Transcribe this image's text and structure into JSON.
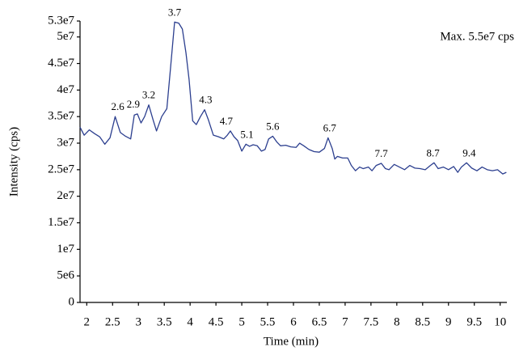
{
  "chart_data": {
    "type": "line",
    "annotation": "Max. 5.5e7 cps",
    "x_label": "Time (min)",
    "y_label": "Intensity (cps)",
    "xlim": [
      1.87,
      10.13
    ],
    "ylim": [
      0,
      53000000.0
    ],
    "xticks": [
      2,
      2.5,
      3,
      3.5,
      4,
      4.5,
      5,
      5.5,
      6,
      6.5,
      7,
      7.5,
      8,
      8.5,
      9,
      9.5,
      10
    ],
    "yticks": [
      0,
      {
        "value": 5000000.0,
        "label": "5e6"
      },
      {
        "value": 10000000.0,
        "label": "1e7"
      },
      {
        "value": 15000000.0,
        "label": "1.5e7"
      },
      {
        "value": 20000000.0,
        "label": "2e7"
      },
      {
        "value": 25000000.0,
        "label": "2.5e7"
      },
      {
        "value": 30000000.0,
        "label": "3e7"
      },
      {
        "value": 35000000.0,
        "label": "3.5e7"
      },
      {
        "value": 40000000.0,
        "label": "4e7"
      },
      {
        "value": 45000000.0,
        "label": "4.5e7"
      },
      {
        "value": 50000000.0,
        "label": "5e7"
      },
      {
        "value": 53000000.0,
        "label": "5.3e7"
      }
    ],
    "series": [
      {
        "color": "#2c3f8f",
        "x": [
          1.87,
          1.95,
          2.05,
          2.15,
          2.25,
          2.35,
          2.45,
          2.55,
          2.65,
          2.75,
          2.85,
          2.92,
          2.98,
          3.05,
          3.12,
          3.2,
          3.28,
          3.35,
          3.45,
          3.55,
          3.62,
          3.7,
          3.78,
          3.85,
          3.92,
          3.98,
          4.05,
          4.12,
          4.2,
          4.28,
          4.35,
          4.45,
          4.55,
          4.65,
          4.72,
          4.78,
          4.85,
          4.92,
          5.0,
          5.08,
          5.15,
          5.22,
          5.3,
          5.38,
          5.45,
          5.52,
          5.6,
          5.68,
          5.75,
          5.85,
          5.95,
          6.05,
          6.12,
          6.2,
          6.3,
          6.4,
          6.5,
          6.6,
          6.67,
          6.75,
          6.8,
          6.85,
          6.95,
          7.05,
          7.12,
          7.2,
          7.28,
          7.35,
          7.45,
          7.52,
          7.6,
          7.7,
          7.78,
          7.85,
          7.95,
          8.05,
          8.15,
          8.25,
          8.35,
          8.45,
          8.55,
          8.65,
          8.72,
          8.8,
          8.9,
          9.0,
          9.1,
          9.18,
          9.25,
          9.35,
          9.45,
          9.55,
          9.65,
          9.75,
          9.85,
          9.95,
          10.05,
          10.12
        ],
        "values": [
          33000000.0,
          31500000.0,
          32500000.0,
          31800000.0,
          31200000.0,
          29800000.0,
          31000000.0,
          35000000.0,
          32000000.0,
          31300000.0,
          30800000.0,
          35300000.0,
          35500000.0,
          33800000.0,
          35000000.0,
          37200000.0,
          34500000.0,
          32300000.0,
          35000000.0,
          36500000.0,
          44000000.0,
          52800000.0,
          52600000.0,
          51500000.0,
          47000000.0,
          42000000.0,
          34200000.0,
          33500000.0,
          35000000.0,
          36300000.0,
          34500000.0,
          31500000.0,
          31200000.0,
          30800000.0,
          31500000.0,
          32300000.0,
          31200000.0,
          30500000.0,
          28500000.0,
          29800000.0,
          29400000.0,
          29700000.0,
          29500000.0,
          28500000.0,
          28800000.0,
          30800000.0,
          31300000.0,
          30200000.0,
          29500000.0,
          29600000.0,
          29300000.0,
          29200000.0,
          30000000.0,
          29500000.0,
          28800000.0,
          28400000.0,
          28300000.0,
          29000000.0,
          31000000.0,
          29000000.0,
          27000000.0,
          27500000.0,
          27200000.0,
          27200000.0,
          25800000.0,
          24800000.0,
          25500000.0,
          25200000.0,
          25500000.0,
          24800000.0,
          25800000.0,
          26200000.0,
          25200000.0,
          25000000.0,
          26000000.0,
          25500000.0,
          25000000.0,
          25800000.0,
          25300000.0,
          25200000.0,
          25000000.0,
          25800000.0,
          26300000.0,
          25200000.0,
          25500000.0,
          25000000.0,
          25600000.0,
          24500000.0,
          25500000.0,
          26300000.0,
          25300000.0,
          24800000.0,
          25500000.0,
          25000000.0,
          24800000.0,
          25000000.0,
          24200000.0,
          24500000.0
        ]
      }
    ],
    "peak_labels": [
      {
        "x": 2.6,
        "y": 35000000.0
      },
      {
        "x": 2.9,
        "y": 35500000.0
      },
      {
        "x": 3.2,
        "y": 37200000.0
      },
      {
        "x": 3.7,
        "y": 52800000.0
      },
      {
        "x": 4.3,
        "y": 36300000.0
      },
      {
        "x": 4.7,
        "y": 32300000.0
      },
      {
        "x": 5.1,
        "y": 29800000.0
      },
      {
        "x": 5.6,
        "y": 31300000.0
      },
      {
        "x": 6.7,
        "y": 31000000.0
      },
      {
        "x": 7.7,
        "y": 26200000.0
      },
      {
        "x": 8.7,
        "y": 26300000.0
      },
      {
        "x": 9.4,
        "y": 26300000.0
      }
    ]
  }
}
